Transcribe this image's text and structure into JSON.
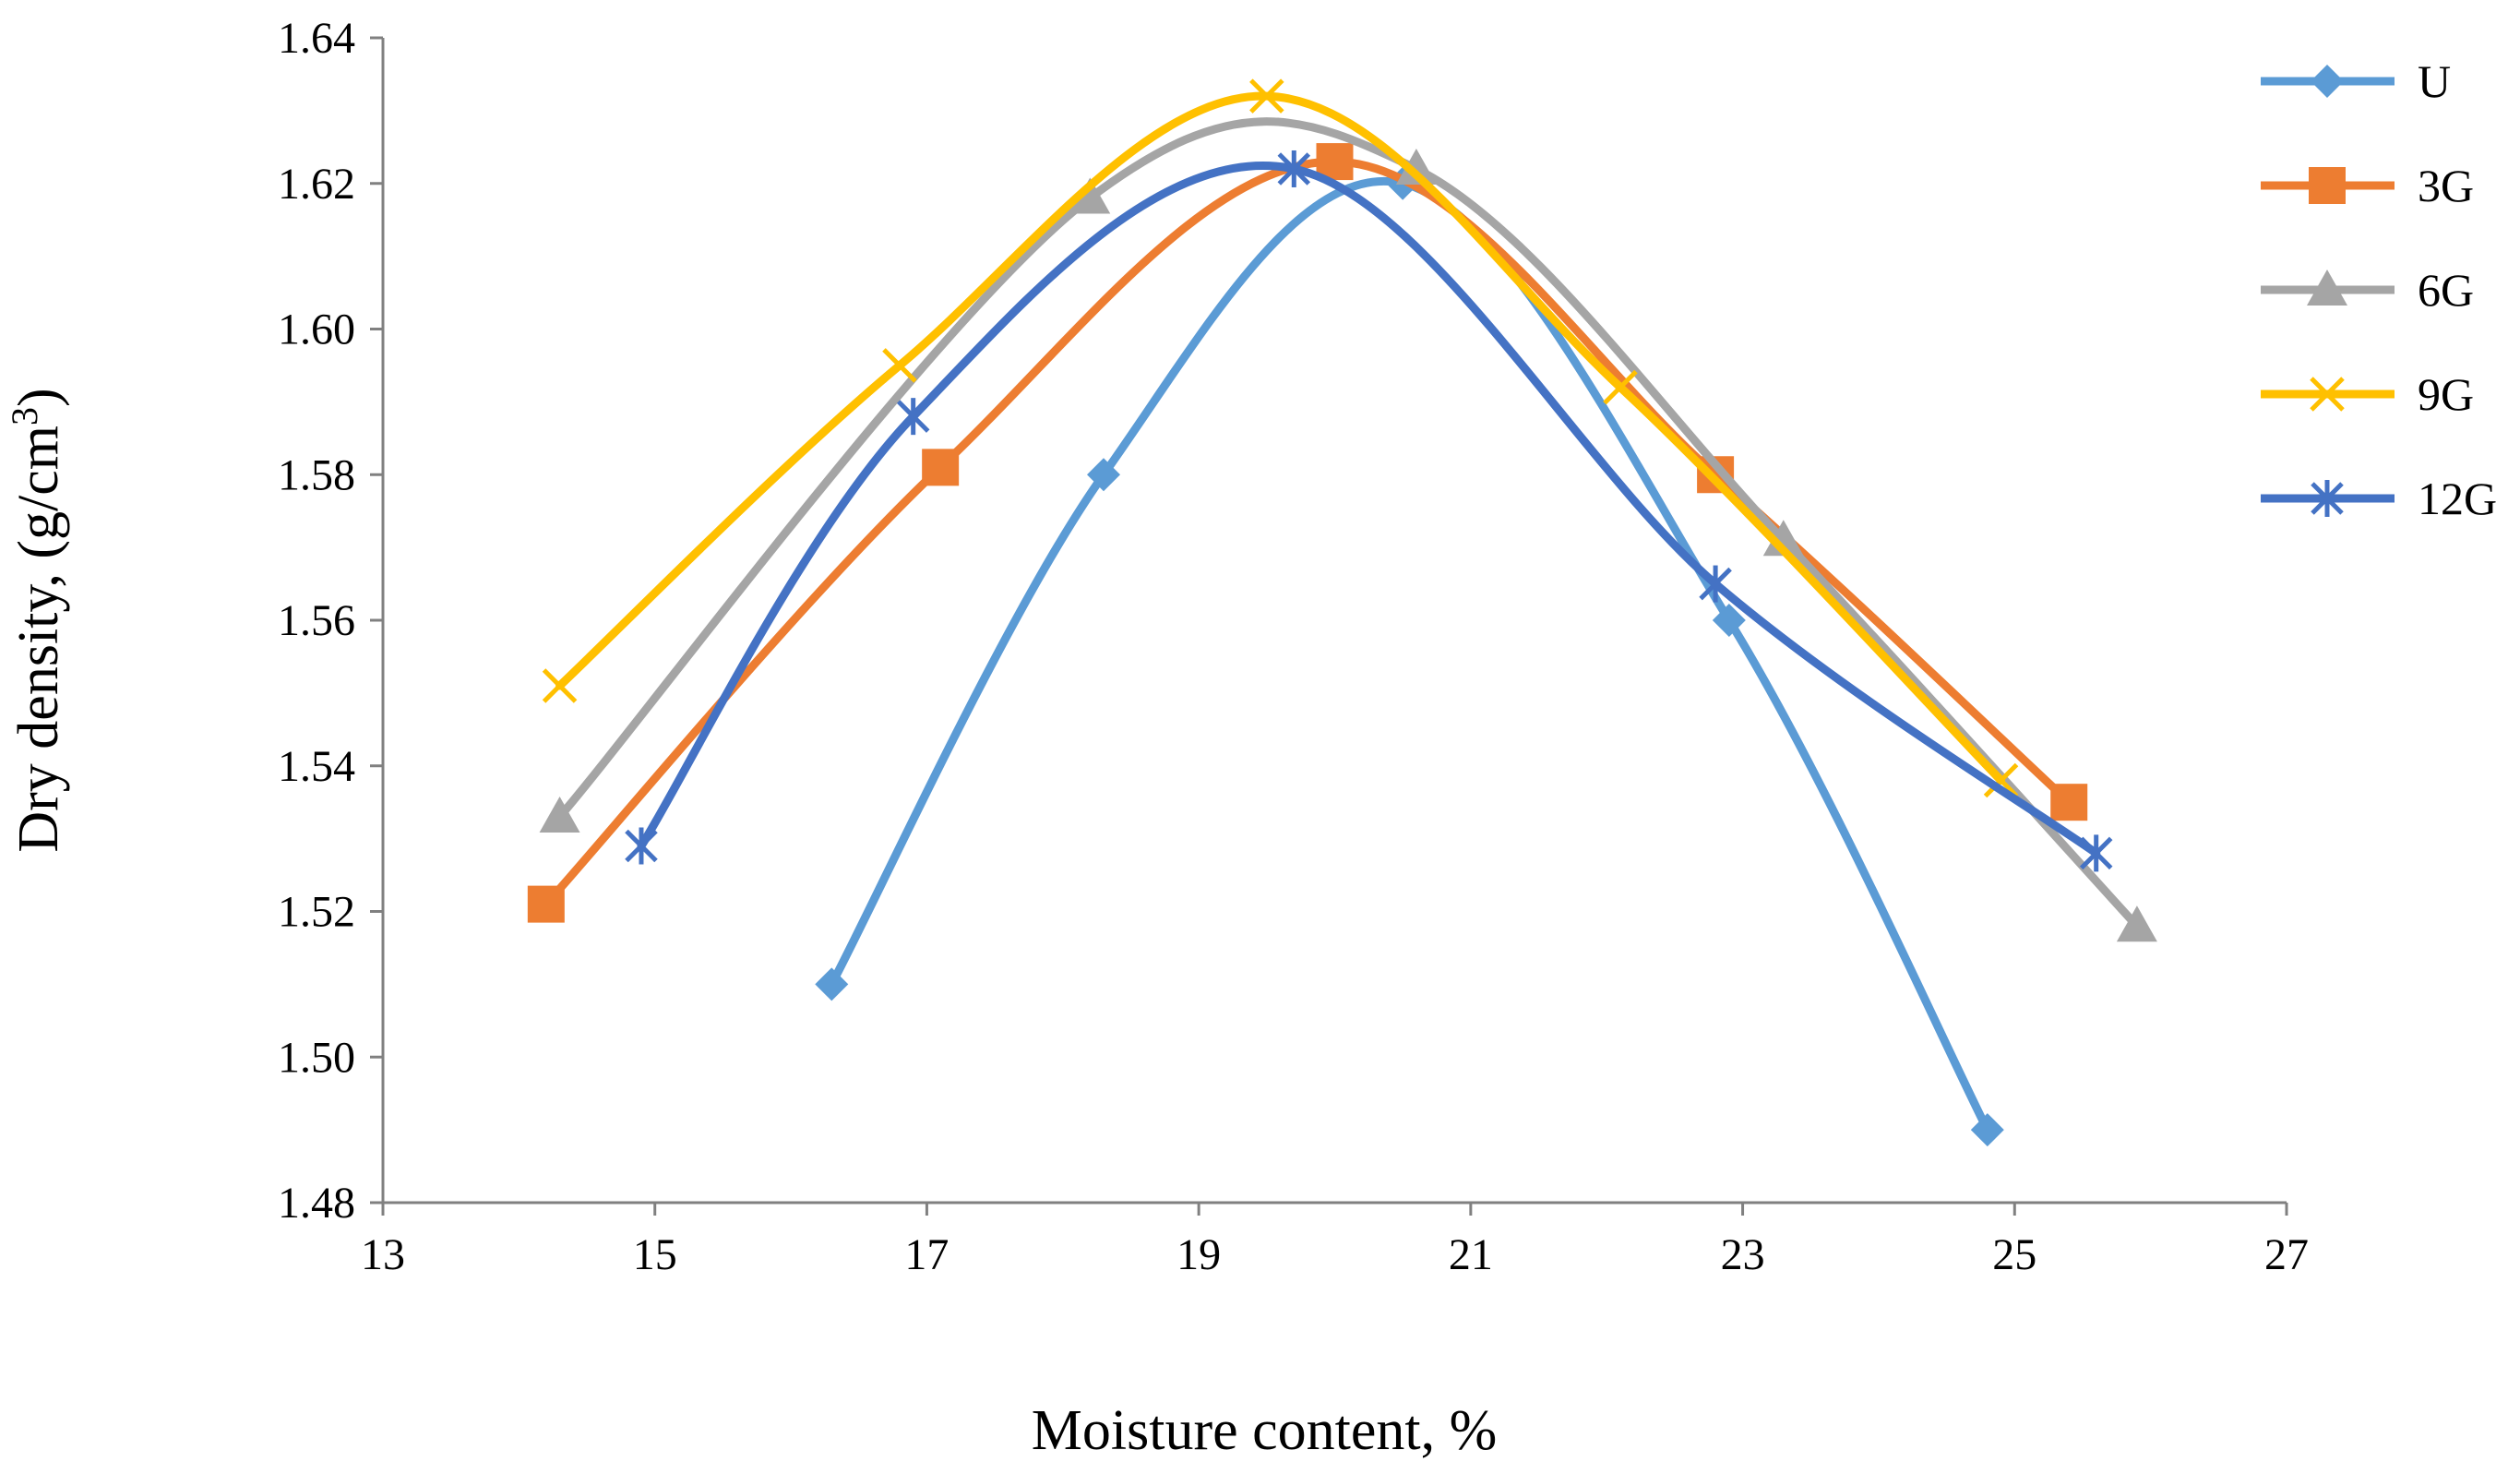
{
  "chart_data": {
    "type": "scatter",
    "title": "",
    "xlabel": "Moisture content, %",
    "ylabel": "Dry density, (g/cm",
    "ylabel_superscript": "3",
    "ylabel_suffix": ")",
    "xlim": [
      13,
      27
    ],
    "ylim": [
      1.48,
      1.64
    ],
    "xticks": [
      13,
      15,
      17,
      19,
      21,
      23,
      25,
      27
    ],
    "yticks": [
      "1.48",
      "1.50",
      "1.52",
      "1.54",
      "1.56",
      "1.58",
      "1.60",
      "1.62",
      "1.64"
    ],
    "grid": false,
    "legend_position": "right",
    "smooth": true,
    "series": [
      {
        "name": "U",
        "marker": "diamond",
        "color": "#5B9BD5",
        "x": [
          16.3,
          18.3,
          20.5,
          22.9,
          24.8
        ],
        "y": [
          1.51,
          1.58,
          1.62,
          1.56,
          1.49
        ]
      },
      {
        "name": "3G",
        "marker": "square",
        "color": "#ED7D31",
        "x": [
          14.2,
          17.1,
          20.0,
          22.8,
          25.4
        ],
        "y": [
          1.521,
          1.581,
          1.623,
          1.58,
          1.535
        ]
      },
      {
        "name": "6G",
        "marker": "triangle",
        "color": "#A5A5A5",
        "x": [
          14.3,
          18.2,
          20.6,
          23.3,
          25.9
        ],
        "y": [
          1.533,
          1.618,
          1.622,
          1.571,
          1.518
        ]
      },
      {
        "name": "9G",
        "marker": "x",
        "color": "#FFC000",
        "x": [
          14.3,
          16.8,
          19.5,
          22.1,
          24.9
        ],
        "y": [
          1.551,
          1.595,
          1.632,
          1.592,
          1.538
        ]
      },
      {
        "name": "12G",
        "marker": "star",
        "color": "#4472C4",
        "x": [
          14.9,
          16.9,
          19.7,
          22.8,
          25.6
        ],
        "y": [
          1.529,
          1.588,
          1.622,
          1.565,
          1.528
        ]
      }
    ]
  }
}
